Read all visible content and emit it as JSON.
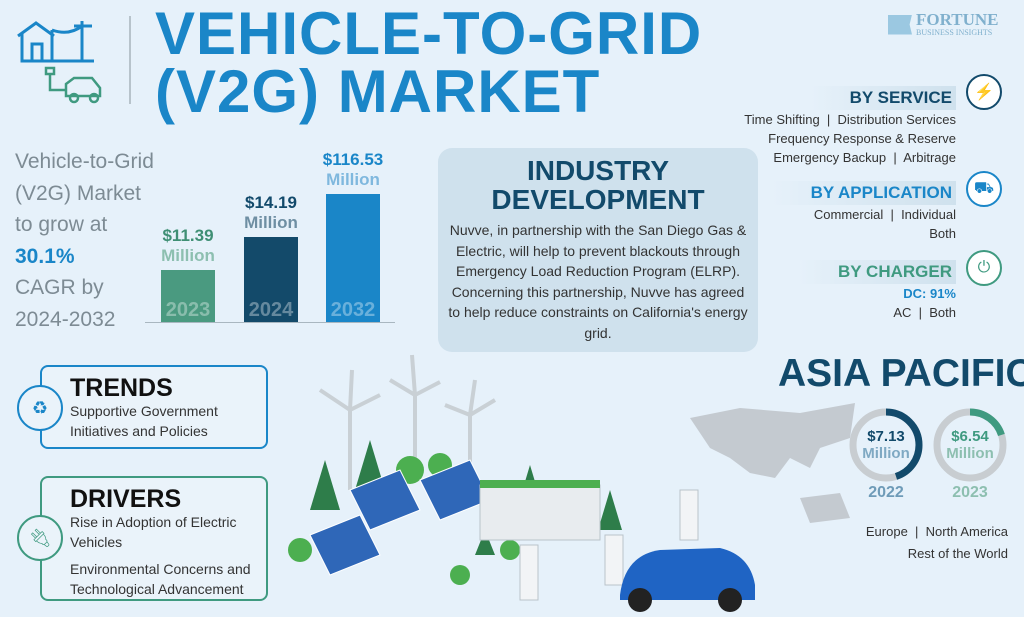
{
  "header": {
    "title_line1": "VEHICLE-TO-GRID",
    "title_line2": "(V2G) MARKET",
    "logo_brand": "FORTUNE",
    "logo_sub": "BUSINESS INSIGHTS"
  },
  "summary": {
    "l1": "Vehicle-to-Grid",
    "l2": "(V2G) Market",
    "l3": "to grow at",
    "cagr": "30.1%",
    "l4": "CAGR by",
    "l5": "2024-2032"
  },
  "chart_data": {
    "type": "bar",
    "categories": [
      "2023",
      "2024",
      "2032"
    ],
    "values": [
      11.39,
      14.19,
      116.53
    ],
    "value_labels": [
      "$11.39",
      "$14.19",
      "$116.53"
    ],
    "unit": "Million",
    "colors": [
      "#4a9a80",
      "#134a6a",
      "#1a86c8"
    ]
  },
  "industry": {
    "title1": "INDUSTRY",
    "title2": "DEVELOPMENT",
    "body": "Nuvve, in partnership with the San Diego Gas & Electric, will help to prevent blackouts through Emergency Load Reduction Program (ELRP). Concerning this partnership, Nuvve has agreed to help reduce constraints on California's energy grid."
  },
  "segments": {
    "service": {
      "title": "BY SERVICE",
      "lines": [
        "Time Shifting  |  Distribution Services",
        "Frequency Response & Reserve",
        "Emergency Backup  |  Arbitrage"
      ]
    },
    "application": {
      "title": "BY APPLICATION",
      "lines": [
        "Commercial  |  Individual",
        "Both"
      ]
    },
    "charger": {
      "title": "BY CHARGER",
      "highlight": "DC: 91%",
      "lines": [
        "AC  |  Both"
      ]
    }
  },
  "trends": {
    "title": "TRENDS",
    "body": "Supportive Government Initiatives and Policies"
  },
  "drivers": {
    "title": "DRIVERS",
    "item1": "Rise in Adoption of Electric Vehicles",
    "item2": "Environmental Concerns and Technological Advancement"
  },
  "region": {
    "title": "ASIA PACIFIC",
    "rings": [
      {
        "value": "$7.13",
        "unit": "Million",
        "year": "2022",
        "fill": 0.45,
        "color": "#124a6b"
      },
      {
        "value": "$6.54",
        "unit": "Million",
        "year": "2023",
        "fill": 0.2,
        "color": "#3f9a80"
      }
    ],
    "others1": "Europe  |  North America",
    "others2": "Rest of the World"
  }
}
